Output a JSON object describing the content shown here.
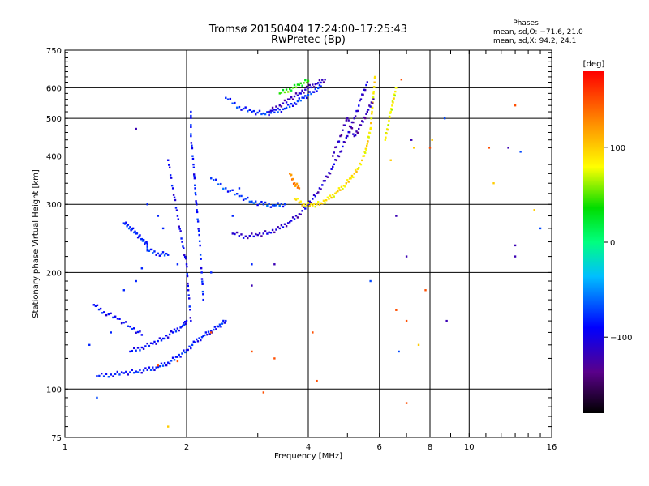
{
  "chart_data": {
    "type": "scatter",
    "title": "Tromsø 20150404 17:24:00–17:25:43",
    "subtitle": "RwPretec (Bp)",
    "xlabel": "Frequency [MHz]",
    "ylabel": "Stationary phase Virtual Height [km]",
    "x_scale": "log",
    "y_scale": "log",
    "xlim": [
      1,
      16
    ],
    "ylim": [
      75,
      750
    ],
    "x_ticks": [
      1,
      2,
      4,
      6,
      8,
      10,
      16
    ],
    "x_tick_labels": [
      "1",
      "2",
      "4",
      "6",
      "8",
      "10",
      "16"
    ],
    "y_ticks": [
      75,
      100,
      200,
      300,
      400,
      500,
      600,
      750
    ],
    "y_tick_labels": [
      "75",
      "100",
      "200",
      "300",
      "400",
      "500",
      "600",
      "750"
    ],
    "grid": true,
    "stats": {
      "heading": "Phases",
      "o_line": "mean, sd,O: −71.6, 21.0",
      "x_line": "mean, sd,X:  94.2, 24.1"
    },
    "colorbar": {
      "label": "[deg]",
      "range": [
        -180,
        180
      ],
      "ticks": [
        100,
        0,
        -100
      ],
      "tick_labels": [
        "100",
        "0",
        "−100"
      ]
    },
    "traces": [
      {
        "phase": -85,
        "points": [
          [
            1.2,
            108
          ],
          [
            1.3,
            109
          ],
          [
            1.4,
            110
          ],
          [
            1.5,
            111
          ],
          [
            1.6,
            112
          ],
          [
            1.7,
            114
          ],
          [
            1.8,
            117
          ],
          [
            1.9,
            121
          ],
          [
            2.0,
            126
          ],
          [
            2.1,
            132
          ],
          [
            2.2,
            137
          ],
          [
            2.3,
            141
          ],
          [
            2.4,
            145
          ],
          [
            2.5,
            150
          ]
        ]
      },
      {
        "phase": -90,
        "points": [
          [
            1.45,
            125
          ],
          [
            1.55,
            128
          ],
          [
            1.65,
            131
          ],
          [
            1.75,
            135
          ],
          [
            1.85,
            140
          ],
          [
            1.95,
            145
          ],
          [
            2.0,
            150
          ]
        ]
      },
      {
        "phase": -90,
        "points": [
          [
            1.18,
            165
          ],
          [
            1.25,
            158
          ],
          [
            1.35,
            152
          ],
          [
            1.45,
            145
          ],
          [
            1.55,
            138
          ]
        ]
      },
      {
        "phase": -80,
        "points": [
          [
            1.4,
            268
          ],
          [
            1.45,
            262
          ],
          [
            1.5,
            252
          ],
          [
            1.55,
            244
          ],
          [
            1.6,
            236
          ],
          [
            1.6,
            228
          ],
          [
            1.7,
            224
          ],
          [
            1.8,
            222
          ]
        ]
      },
      {
        "phase": -95,
        "points": [
          [
            1.8,
            390
          ],
          [
            1.85,
            330
          ],
          [
            1.9,
            280
          ],
          [
            1.95,
            240
          ],
          [
            2.0,
            210
          ],
          [
            2.02,
            180
          ],
          [
            2.05,
            150
          ]
        ]
      },
      {
        "phase": -85,
        "points": [
          [
            2.05,
            520
          ],
          [
            2.05,
            450
          ],
          [
            2.08,
            380
          ],
          [
            2.1,
            330
          ],
          [
            2.12,
            290
          ],
          [
            2.15,
            250
          ],
          [
            2.18,
            200
          ],
          [
            2.2,
            170
          ]
        ]
      },
      {
        "phase": -110,
        "points": [
          [
            2.6,
            252
          ],
          [
            2.8,
            248
          ],
          [
            3.0,
            250
          ],
          [
            3.2,
            254
          ],
          [
            3.4,
            260
          ],
          [
            3.6,
            270
          ],
          [
            3.8,
            283
          ],
          [
            4.0,
            300
          ],
          [
            4.2,
            320
          ],
          [
            4.4,
            345
          ],
          [
            4.6,
            375
          ],
          [
            4.8,
            410
          ],
          [
            5.0,
            450
          ],
          [
            5.2,
            500
          ],
          [
            5.4,
            560
          ],
          [
            5.6,
            620
          ]
        ]
      },
      {
        "phase": -75,
        "points": [
          [
            2.3,
            350
          ],
          [
            2.5,
            330
          ],
          [
            2.7,
            315
          ],
          [
            2.9,
            305
          ],
          [
            3.1,
            300
          ],
          [
            3.3,
            298
          ],
          [
            3.5,
            300
          ]
        ]
      },
      {
        "phase": -80,
        "points": [
          [
            2.5,
            565
          ],
          [
            2.7,
            535
          ],
          [
            2.9,
            520
          ],
          [
            3.1,
            515
          ],
          [
            3.3,
            518
          ],
          [
            3.5,
            530
          ],
          [
            3.7,
            548
          ],
          [
            3.9,
            565
          ],
          [
            4.1,
            585
          ],
          [
            4.3,
            605
          ]
        ]
      },
      {
        "phase": -115,
        "points": [
          [
            3.2,
            520
          ],
          [
            3.4,
            540
          ],
          [
            3.6,
            560
          ],
          [
            3.8,
            580
          ],
          [
            4.0,
            600
          ],
          [
            4.2,
            615
          ],
          [
            4.4,
            630
          ]
        ]
      },
      {
        "phase": 90,
        "points": [
          [
            3.7,
            310
          ],
          [
            3.9,
            300
          ],
          [
            4.1,
            298
          ],
          [
            4.3,
            302
          ],
          [
            4.5,
            310
          ],
          [
            4.7,
            322
          ],
          [
            4.9,
            335
          ],
          [
            5.1,
            350
          ],
          [
            5.3,
            370
          ],
          [
            5.5,
            400
          ],
          [
            5.6,
            430
          ],
          [
            5.7,
            470
          ],
          [
            5.75,
            520
          ],
          [
            5.8,
            580
          ],
          [
            5.85,
            640
          ]
        ]
      },
      {
        "phase": 40,
        "points": [
          [
            3.4,
            580
          ],
          [
            3.6,
            595
          ],
          [
            3.8,
            610
          ],
          [
            4.0,
            625
          ]
        ]
      },
      {
        "phase": -120,
        "points": [
          [
            4.6,
            400
          ],
          [
            4.8,
            450
          ],
          [
            5.0,
            500
          ],
          [
            5.2,
            450
          ],
          [
            5.4,
            480
          ],
          [
            5.6,
            520
          ],
          [
            5.8,
            560
          ]
        ]
      },
      {
        "phase": 80,
        "points": [
          [
            6.2,
            440
          ],
          [
            6.3,
            480
          ],
          [
            6.4,
            520
          ],
          [
            6.5,
            560
          ],
          [
            6.6,
            600
          ]
        ]
      },
      {
        "phase": 130,
        "points": [
          [
            3.6,
            360
          ],
          [
            3.7,
            340
          ],
          [
            3.8,
            330
          ]
        ]
      }
    ],
    "scatter": [
      {
        "phase": -80,
        "points": [
          [
            1.15,
            130
          ],
          [
            1.3,
            140
          ],
          [
            1.4,
            180
          ],
          [
            1.5,
            190
          ],
          [
            1.55,
            205
          ],
          [
            1.6,
            300
          ],
          [
            1.7,
            280
          ],
          [
            1.75,
            260
          ],
          [
            1.9,
            210
          ],
          [
            2.3,
            200
          ],
          [
            2.6,
            280
          ],
          [
            2.7,
            330
          ],
          [
            2.9,
            210
          ]
        ]
      },
      {
        "phase": 150,
        "points": [
          [
            1.7,
            115
          ],
          [
            1.9,
            118
          ],
          [
            2.3,
            140
          ],
          [
            2.9,
            125
          ],
          [
            3.1,
            98
          ],
          [
            3.3,
            120
          ],
          [
            4.1,
            140
          ],
          [
            4.2,
            105
          ],
          [
            6.6,
            160
          ],
          [
            7.0,
            150
          ],
          [
            7.0,
            92
          ],
          [
            7.8,
            180
          ],
          [
            8.0,
            420
          ],
          [
            11.2,
            420
          ],
          [
            13.0,
            540
          ],
          [
            6.8,
            630
          ]
        ]
      },
      {
        "phase": -120,
        "points": [
          [
            1.5,
            470
          ],
          [
            2.9,
            185
          ],
          [
            3.3,
            210
          ],
          [
            6.6,
            280
          ],
          [
            7.0,
            220
          ],
          [
            7.2,
            440
          ],
          [
            8.8,
            150
          ],
          [
            12.5,
            420
          ],
          [
            13.0,
            220
          ],
          [
            13.0,
            235
          ]
        ]
      },
      {
        "phase": -70,
        "points": [
          [
            1.2,
            95
          ],
          [
            6.7,
            125
          ],
          [
            8.7,
            500
          ],
          [
            13.4,
            410
          ],
          [
            15.0,
            260
          ],
          [
            5.7,
            190
          ]
        ]
      },
      {
        "phase": 100,
        "points": [
          [
            6.4,
            390
          ],
          [
            7.3,
            420
          ],
          [
            8.1,
            440
          ],
          [
            11.5,
            340
          ],
          [
            14.5,
            290
          ],
          [
            7.5,
            130
          ],
          [
            1.8,
            80
          ]
        ]
      }
    ]
  }
}
